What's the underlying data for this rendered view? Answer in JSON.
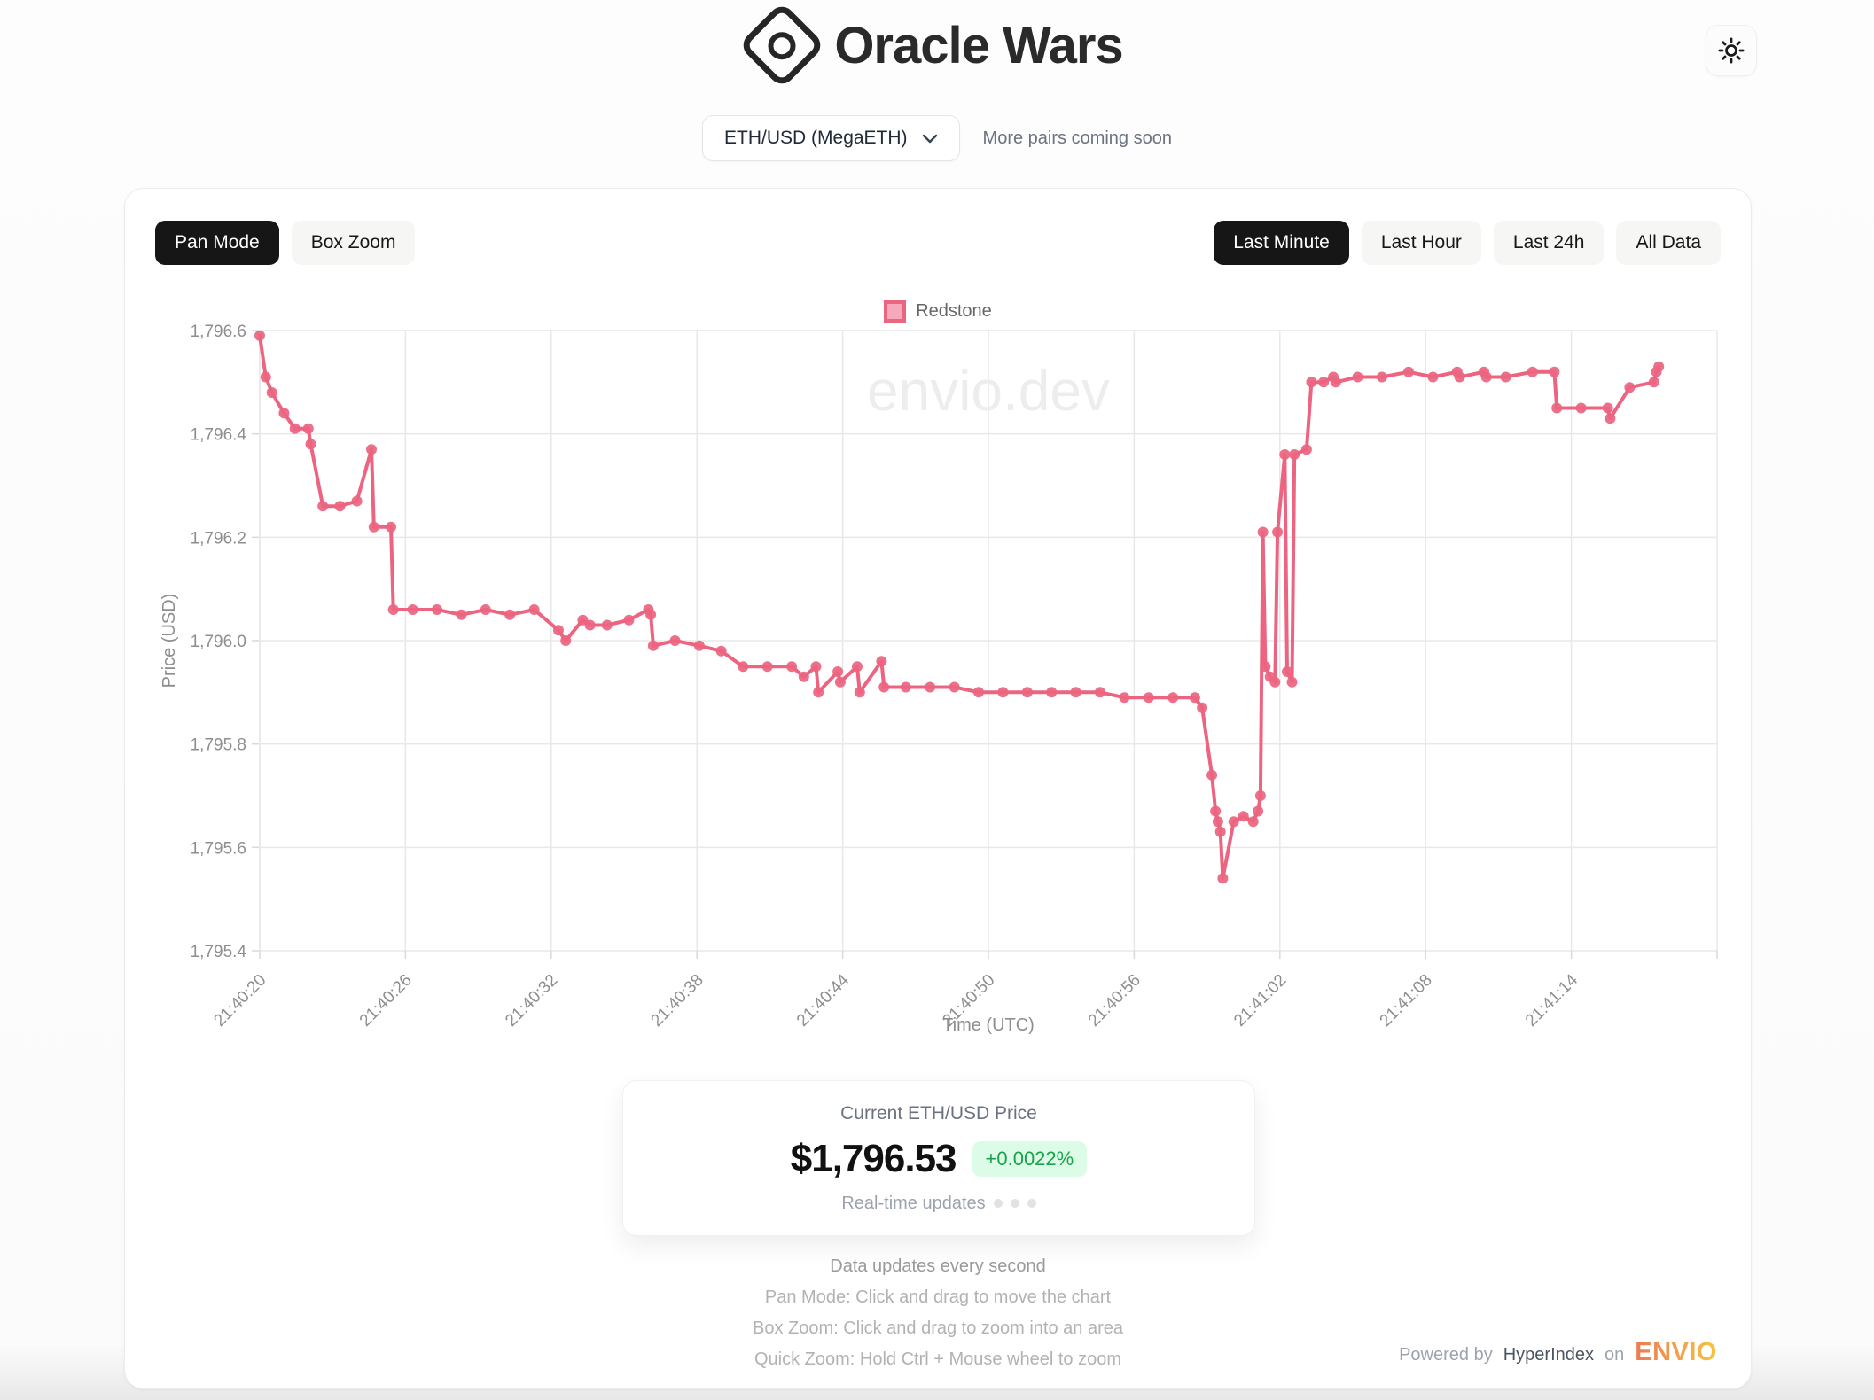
{
  "header": {
    "title": "Oracle Wars"
  },
  "pair_selector": {
    "selected": "ETH/USD (MegaETH)",
    "note": "More pairs coming soon"
  },
  "toolbar": {
    "modes": [
      {
        "label": "Pan Mode",
        "active": true
      },
      {
        "label": "Box Zoom",
        "active": false
      }
    ],
    "ranges": [
      {
        "label": "Last Minute",
        "active": true
      },
      {
        "label": "Last Hour",
        "active": false
      },
      {
        "label": "Last 24h",
        "active": false
      },
      {
        "label": "All Data",
        "active": false
      }
    ]
  },
  "chart_data": {
    "type": "line",
    "watermark": "envio.dev",
    "grid_color": "#e8e8e8",
    "tick_color": "#8e8e8e",
    "x_axis": {
      "label": "Time (UTC)",
      "domain_seconds": [
        0,
        60
      ],
      "ticks": [
        {
          "t": 0,
          "label": "21:40:20"
        },
        {
          "t": 6,
          "label": "21:40:26"
        },
        {
          "t": 12,
          "label": "21:40:32"
        },
        {
          "t": 18,
          "label": "21:40:38"
        },
        {
          "t": 24,
          "label": "21:40:44"
        },
        {
          "t": 30,
          "label": "21:40:50"
        },
        {
          "t": 36,
          "label": "21:40:56"
        },
        {
          "t": 42,
          "label": "21:41:02"
        },
        {
          "t": 48,
          "label": "21:41:08"
        },
        {
          "t": 54,
          "label": "21:41:14"
        },
        {
          "t": 60,
          "label": ""
        }
      ]
    },
    "y_axis": {
      "label": "Price (USD)",
      "domain": [
        1795.4,
        1796.6
      ],
      "ticks": [
        {
          "v": 1795.4,
          "label": "1,795.4"
        },
        {
          "v": 1795.6,
          "label": "1,795.6"
        },
        {
          "v": 1795.8,
          "label": "1,795.8"
        },
        {
          "v": 1796.0,
          "label": "1,796.0"
        },
        {
          "v": 1796.2,
          "label": "1,796.2"
        },
        {
          "v": 1796.4,
          "label": "1,796.4"
        },
        {
          "v": 1796.6,
          "label": "1,796.6"
        }
      ]
    },
    "series": [
      {
        "name": "Redstone",
        "color": "#ec6480",
        "legend_fill": "#f5a9bb",
        "points": [
          [
            0,
            1796.59
          ],
          [
            0.25,
            1796.51
          ],
          [
            0.5,
            1796.48
          ],
          [
            1,
            1796.44
          ],
          [
            1.45,
            1796.41
          ],
          [
            2,
            1796.41
          ],
          [
            2.1,
            1796.38
          ],
          [
            2.6,
            1796.26
          ],
          [
            3.3,
            1796.26
          ],
          [
            4,
            1796.27
          ],
          [
            4.6,
            1796.37
          ],
          [
            4.7,
            1796.22
          ],
          [
            5.4,
            1796.22
          ],
          [
            5.5,
            1796.06
          ],
          [
            6.3,
            1796.06
          ],
          [
            7.3,
            1796.06
          ],
          [
            8.3,
            1796.05
          ],
          [
            9.3,
            1796.06
          ],
          [
            10.3,
            1796.05
          ],
          [
            11.3,
            1796.06
          ],
          [
            12.3,
            1796.02
          ],
          [
            12.6,
            1796.0
          ],
          [
            13.3,
            1796.04
          ],
          [
            13.6,
            1796.03
          ],
          [
            14.3,
            1796.03
          ],
          [
            15.2,
            1796.04
          ],
          [
            16,
            1796.06
          ],
          [
            16.1,
            1796.05
          ],
          [
            16.2,
            1795.99
          ],
          [
            17.1,
            1796.0
          ],
          [
            18.1,
            1795.99
          ],
          [
            19,
            1795.98
          ],
          [
            19.9,
            1795.95
          ],
          [
            20.9,
            1795.95
          ],
          [
            21.9,
            1795.95
          ],
          [
            22.4,
            1795.93
          ],
          [
            22.9,
            1795.95
          ],
          [
            23,
            1795.9
          ],
          [
            23.8,
            1795.94
          ],
          [
            23.9,
            1795.92
          ],
          [
            24.6,
            1795.95
          ],
          [
            24.7,
            1795.9
          ],
          [
            25.6,
            1795.96
          ],
          [
            25.7,
            1795.91
          ],
          [
            26.6,
            1795.91
          ],
          [
            27.6,
            1795.91
          ],
          [
            28.6,
            1795.91
          ],
          [
            29.6,
            1795.9
          ],
          [
            30.6,
            1795.9
          ],
          [
            31.6,
            1795.9
          ],
          [
            32.6,
            1795.9
          ],
          [
            33.6,
            1795.9
          ],
          [
            34.6,
            1795.9
          ],
          [
            35.6,
            1795.89
          ],
          [
            36.6,
            1795.89
          ],
          [
            37.6,
            1795.89
          ],
          [
            38.5,
            1795.89
          ],
          [
            38.8,
            1795.87
          ],
          [
            39.2,
            1795.74
          ],
          [
            39.35,
            1795.67
          ],
          [
            39.45,
            1795.65
          ],
          [
            39.55,
            1795.63
          ],
          [
            39.65,
            1795.54
          ],
          [
            40.1,
            1795.65
          ],
          [
            40.5,
            1795.66
          ],
          [
            40.9,
            1795.65
          ],
          [
            41.1,
            1795.67
          ],
          [
            41.2,
            1795.7
          ],
          [
            41.3,
            1796.21
          ],
          [
            41.4,
            1795.95
          ],
          [
            41.6,
            1795.93
          ],
          [
            41.8,
            1795.92
          ],
          [
            41.9,
            1796.21
          ],
          [
            42.2,
            1796.36
          ],
          [
            42.3,
            1795.94
          ],
          [
            42.5,
            1795.92
          ],
          [
            42.6,
            1796.36
          ],
          [
            43.1,
            1796.37
          ],
          [
            43.3,
            1796.5
          ],
          [
            43.8,
            1796.5
          ],
          [
            44.2,
            1796.51
          ],
          [
            44.3,
            1796.5
          ],
          [
            45.2,
            1796.51
          ],
          [
            46.2,
            1796.51
          ],
          [
            47.3,
            1796.52
          ],
          [
            48.3,
            1796.51
          ],
          [
            49.3,
            1796.52
          ],
          [
            49.4,
            1796.51
          ],
          [
            50.4,
            1796.52
          ],
          [
            50.5,
            1796.51
          ],
          [
            51.3,
            1796.51
          ],
          [
            52.4,
            1796.52
          ],
          [
            53.3,
            1796.52
          ],
          [
            53.4,
            1796.45
          ],
          [
            54.4,
            1796.45
          ],
          [
            55.5,
            1796.45
          ],
          [
            55.6,
            1796.43
          ],
          [
            56.4,
            1796.49
          ],
          [
            57.4,
            1796.5
          ],
          [
            57.5,
            1796.52
          ],
          [
            57.6,
            1796.53
          ]
        ]
      }
    ]
  },
  "price_card": {
    "title": "Current ETH/USD Price",
    "price": "$1,796.53",
    "change": "+0.0022%",
    "change_color": "#16a34a",
    "change_bg": "#dcfce7",
    "subtitle": "Real-time updates"
  },
  "footer": {
    "lines": [
      "Data updates every second",
      "Pan Mode: Click and drag to move the chart",
      "Box Zoom: Click and drag to zoom into an area",
      "Quick Zoom: Hold Ctrl + Mouse wheel to zoom"
    ],
    "powered_by": {
      "prefix": "Powered by",
      "brand": "HyperIndex",
      "conj": "on",
      "logo": "ENVIO"
    }
  }
}
